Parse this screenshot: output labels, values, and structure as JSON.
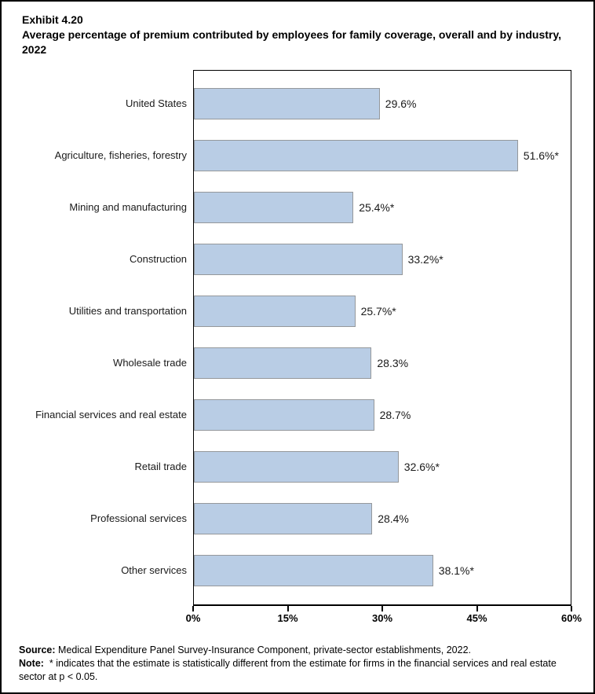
{
  "page": {
    "background": "#ffffff",
    "border_color": "#000000"
  },
  "header": {
    "exhibit_label": "Exhibit 4.20",
    "title": "Average percentage of premium contributed by employees for family coverage, overall and by industry, 2022"
  },
  "chart_data": {
    "type": "bar",
    "orientation": "horizontal",
    "title": "Average percentage of premium contributed by employees for family coverage, overall and by industry, 2022",
    "xlabel": "",
    "ylabel": "",
    "xlim": [
      0,
      60
    ],
    "x_tick_values": [
      0,
      15,
      30,
      45,
      60
    ],
    "x_tick_labels": [
      "0%",
      "15%",
      "30%",
      "45%",
      "60%"
    ],
    "grid": false,
    "legend": "none",
    "bar_color": "#B9CDE5",
    "bar_border_color": "#95989B",
    "categories": [
      "United States",
      "Agriculture, fisheries, forestry",
      "Mining and manufacturing",
      "Construction",
      "Utilities and transportation",
      "Wholesale trade",
      "Financial services and real estate",
      "Retail trade",
      "Professional services",
      "Other services"
    ],
    "values": [
      29.6,
      51.6,
      25.4,
      33.2,
      25.7,
      28.3,
      28.7,
      32.6,
      28.4,
      38.1
    ],
    "value_labels": [
      "29.6%",
      "51.6%*",
      "25.4%*",
      "33.2%*",
      "25.7%*",
      "28.3%",
      "28.7%",
      "32.6%*",
      "28.4%",
      "38.1%*"
    ]
  },
  "footer": {
    "source_label": "Source:",
    "source_text": "Medical Expenditure Panel Survey-Insurance Component, private-sector establishments, 2022.",
    "note_label": "Note:",
    "note_text": "* indicates that the estimate is statistically different from the estimate for firms in the financial services and real estate sector at p < 0.05."
  }
}
